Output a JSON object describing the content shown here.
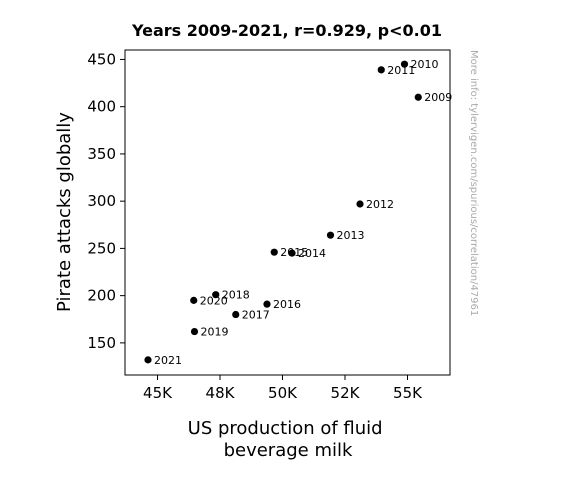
{
  "chart_data": {
    "type": "scatter",
    "title": "Years 2009-2021, r=0.929, p<0.01",
    "xlabel": [
      "US production of fluid",
      "beverage milk"
    ],
    "ylabel": "Pirate attacks globally",
    "xlim": [
      43700,
      56700
    ],
    "ylim": [
      116,
      460
    ],
    "xticks": [
      {
        "value": 45000,
        "label": "45K"
      },
      {
        "value": 47500,
        "label": "48K"
      },
      {
        "value": 50000,
        "label": "50K"
      },
      {
        "value": 52500,
        "label": "52K"
      },
      {
        "value": 55000,
        "label": "55K"
      }
    ],
    "yticks": [
      {
        "value": 150,
        "label": "150"
      },
      {
        "value": 200,
        "label": "200"
      },
      {
        "value": 250,
        "label": "250"
      },
      {
        "value": 300,
        "label": "300"
      },
      {
        "value": 350,
        "label": "350"
      },
      {
        "value": 400,
        "label": "400"
      },
      {
        "value": 450,
        "label": "450"
      }
    ],
    "points": [
      {
        "label": "2009",
        "x": 55430,
        "y": 410
      },
      {
        "label": "2010",
        "x": 54880,
        "y": 445
      },
      {
        "label": "2011",
        "x": 53950,
        "y": 439
      },
      {
        "label": "2012",
        "x": 53100,
        "y": 297
      },
      {
        "label": "2013",
        "x": 51920,
        "y": 264
      },
      {
        "label": "2014",
        "x": 50380,
        "y": 245
      },
      {
        "label": "2015",
        "x": 49670,
        "y": 246
      },
      {
        "label": "2016",
        "x": 49380,
        "y": 191
      },
      {
        "label": "2017",
        "x": 48130,
        "y": 180
      },
      {
        "label": "2018",
        "x": 47330,
        "y": 201
      },
      {
        "label": "2019",
        "x": 46480,
        "y": 162
      },
      {
        "label": "2020",
        "x": 46450,
        "y": 195
      },
      {
        "label": "2021",
        "x": 44620,
        "y": 132
      }
    ],
    "marker_color": "#000000",
    "grid": false,
    "watermark": "More info: tylervigen.com/spurious/correlation/47961"
  }
}
